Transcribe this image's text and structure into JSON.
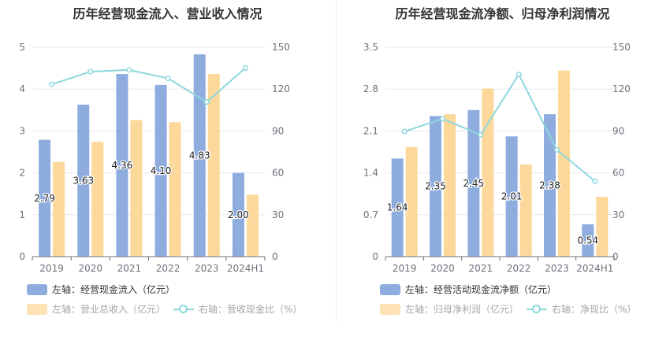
{
  "colors": {
    "bar1": "#8eadde",
    "bar2": "#fcd89b",
    "line": "#8dd7dd",
    "axis_text": "#6e7079",
    "grid": "#e8eaef",
    "title": "#333333",
    "legend_active": "#333333",
    "legend_muted": "#a5a5a5"
  },
  "chart_data": [
    {
      "type": "bar",
      "title": "历年经营现金流入、营业收入情况",
      "categories": [
        "2019",
        "2020",
        "2021",
        "2022",
        "2023",
        "2024H1"
      ],
      "left_ticks": [
        "0",
        "1",
        "2",
        "3",
        "4",
        "5"
      ],
      "right_ticks": [
        "0",
        "30",
        "60",
        "90",
        "120",
        "150"
      ],
      "ylim_left": [
        0,
        5
      ],
      "ylim_right": [
        0,
        150
      ],
      "series": [
        {
          "name": "左轴：经营现金流入（亿元）",
          "kind": "bar",
          "axis": "left",
          "values": [
            2.79,
            3.63,
            4.36,
            4.1,
            4.83,
            2.0
          ],
          "labels": [
            "2.79",
            "3.63",
            "4.36",
            "4.10",
            "4.83",
            "2.00"
          ]
        },
        {
          "name": "左轴：营业总收入（亿元）",
          "kind": "bar",
          "axis": "left",
          "values": [
            2.26,
            2.74,
            3.26,
            3.21,
            4.36,
            1.48
          ]
        },
        {
          "name": "右轴：营收现金比（%）",
          "kind": "line",
          "axis": "right",
          "values": [
            123.4,
            132.5,
            133.7,
            127.7,
            110.8,
            135.1
          ]
        }
      ]
    },
    {
      "type": "bar",
      "title": "历年经营现金流净额、归母净利润情况",
      "categories": [
        "2019",
        "2020",
        "2021",
        "2022",
        "2023",
        "2024H1"
      ],
      "left_ticks": [
        "0",
        "0.7",
        "1.4",
        "2.1",
        "2.8",
        "3.5"
      ],
      "right_ticks": [
        "0",
        "30",
        "60",
        "90",
        "120",
        "150"
      ],
      "ylim_left": [
        0,
        3.5
      ],
      "ylim_right": [
        0,
        150
      ],
      "series": [
        {
          "name": "左轴：经营活动现金流净额（亿元）",
          "kind": "bar",
          "axis": "left",
          "values": [
            1.64,
            2.35,
            2.45,
            2.01,
            2.38,
            0.54
          ],
          "labels": [
            "1.64",
            "2.35",
            "2.45",
            "2.01",
            "2.38",
            "0.54"
          ]
        },
        {
          "name": "左轴：归母净利润（亿元）",
          "kind": "bar",
          "axis": "left",
          "values": [
            1.83,
            2.38,
            2.81,
            1.54,
            3.11,
            1.0
          ]
        },
        {
          "name": "右轴：净现比（%）",
          "kind": "line",
          "axis": "right",
          "values": [
            89.6,
            98.7,
            87.2,
            130.5,
            76.5,
            54.0
          ]
        }
      ]
    }
  ]
}
